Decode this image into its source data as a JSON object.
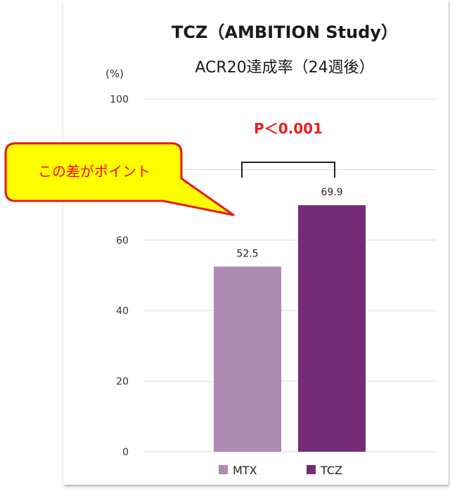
{
  "chart_data": {
    "type": "bar",
    "title": "TCZ（AMBITION Study）",
    "subtitle": "ACR20達成率（24週後）",
    "ylabel": "(%)",
    "ylim": [
      0,
      100
    ],
    "yticks": [
      0,
      20,
      40,
      60,
      100
    ],
    "categories": [
      "MTX",
      "TCZ"
    ],
    "values": [
      52.5,
      69.9
    ],
    "data_labels": [
      "52.5",
      "69.9"
    ],
    "colors": [
      "#ae8bb3",
      "#742b78"
    ],
    "legend": [
      "MTX",
      "TCZ"
    ],
    "legend_position": "bottom",
    "grid": true,
    "annotation": "P＜0.001",
    "callout": "この差がポイント"
  }
}
